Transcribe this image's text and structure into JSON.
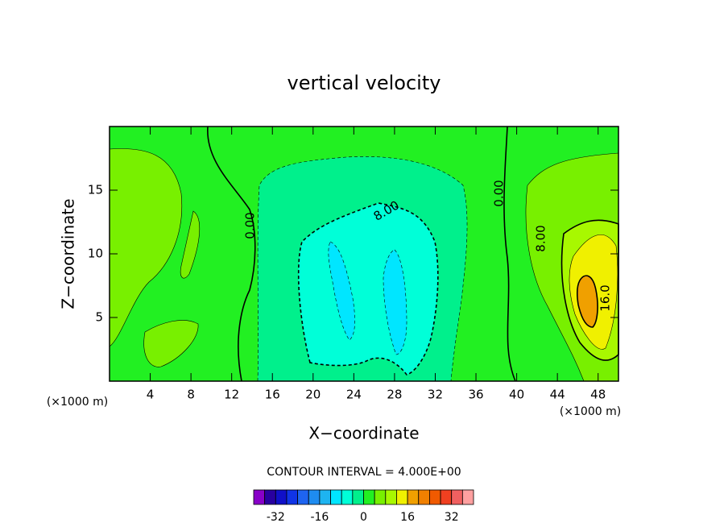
{
  "chart_data": {
    "type": "contour",
    "title": "vertical velocity",
    "x_label": "X−coordinate",
    "y_label": "Z−coordinate",
    "x_unit": "(×1000 m)",
    "y_unit": "(×1000 m)",
    "xlim": [
      0,
      50
    ],
    "ylim": [
      0,
      20
    ],
    "xticks": [
      4,
      8,
      12,
      16,
      20,
      24,
      28,
      32,
      36,
      40,
      44,
      48
    ],
    "yticks": [
      5,
      10,
      15
    ],
    "contour_labels": [
      "0.00",
      "8.00",
      "0.00",
      "8.00",
      "16.0"
    ],
    "interval_note": "CONTOUR INTERVAL = 4.000E+00",
    "colorbar": {
      "lim": [
        -40,
        40
      ],
      "ticks": [
        -32,
        -16,
        0,
        16,
        32
      ],
      "colors": [
        "#8800c8",
        "#2800a0",
        "#1010c8",
        "#1034e6",
        "#1e64f0",
        "#1e8cf0",
        "#1eb4f0",
        "#00e6ff",
        "#00ffd8",
        "#00f08c",
        "#22f022",
        "#78f000",
        "#a8f800",
        "#f0f000",
        "#f0a000",
        "#f08000",
        "#f05a00",
        "#f04020",
        "#f06060",
        "#ffa0a0"
      ]
    }
  }
}
